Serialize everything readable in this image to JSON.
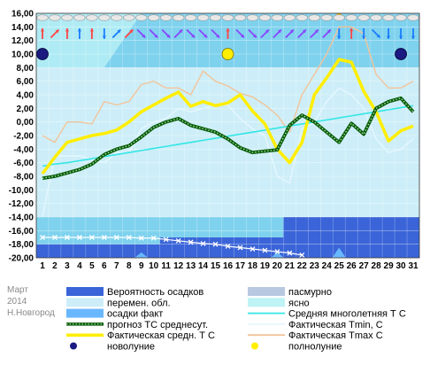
{
  "chart_data": {
    "type": "line",
    "month": "Март",
    "year": "2014",
    "city": "Н.Новгород",
    "x": [
      1,
      2,
      3,
      4,
      5,
      6,
      7,
      8,
      9,
      10,
      11,
      12,
      13,
      14,
      15,
      16,
      17,
      18,
      19,
      20,
      21,
      22,
      23,
      24,
      25,
      26,
      27,
      28,
      29,
      30,
      31
    ],
    "ylim": [
      -20,
      16
    ],
    "yticks": [
      "16,00",
      "14,00",
      "12,00",
      "10,00",
      "8,00",
      "6,00",
      "4,00",
      "2,00",
      "0,00",
      "-2,00",
      "-4,00",
      "-6,00",
      "-8,00",
      "-10,00",
      "-12,00",
      "-14,00",
      "-16,00",
      "-18,00",
      "-20,00"
    ],
    "grid": true,
    "legend_position": "bottom",
    "colors": {
      "sky_upper": "#7fd2ee",
      "sky_lower": "#cdeef8",
      "clear": "#bff3f5",
      "precip_prob": "#3a64d8",
      "precip_fact": "#69b7ff",
      "overcast": "#b8c8e0",
      "avg_longterm": "#33e6e6",
      "forecast_mean": "#0a6f0a",
      "actual_mean": "#ffee00",
      "tmin": "#e6f7ff",
      "tmax": "#f2c49a",
      "new_moon": "#1a1a80",
      "full_moon": "#ffee00"
    },
    "series": [
      {
        "name": "Фактическая средн. Т С",
        "values": [
          -7.6,
          -5.2,
          -3,
          -2.5,
          -2,
          -1.7,
          -1.2,
          0,
          1.5,
          2.5,
          3.5,
          4.4,
          2.3,
          3,
          2.4,
          2.8,
          4,
          1.6,
          -0.3,
          -4,
          -6,
          -3,
          4,
          6.5,
          9.2,
          8.8,
          4.5,
          1.5,
          -2.8,
          -1.3,
          -0.6
        ]
      },
      {
        "name": "прогноз ТС среднесут.",
        "values": [
          -8.3,
          -8,
          -7.5,
          -7,
          -6.2,
          -4.8,
          -4,
          -3.5,
          -2.2,
          -0.8,
          0,
          0.5,
          -0.5,
          -1,
          -1.5,
          -2.5,
          -3.8,
          -4.5,
          -4.3,
          -4.1,
          -0.5,
          1,
          0,
          -1.5,
          -3,
          -0.2,
          -1.8,
          2,
          3,
          3.5,
          1.5
        ]
      },
      {
        "name": "Средняя многолетняя Т С",
        "values": [
          -6.5,
          -6.2,
          -6,
          -5.7,
          -5.4,
          -5.1,
          -4.8,
          -4.5,
          -4.2,
          -3.9,
          -3.6,
          -3.3,
          -3,
          -2.7,
          -2.4,
          -2.1,
          -1.8,
          -1.5,
          -1.2,
          -0.9,
          -0.6,
          -0.3,
          0,
          0.3,
          0.6,
          0.9,
          1.2,
          1.5,
          1.8,
          2.1,
          2.4
        ]
      },
      {
        "name": "Фактическая Tmin, C",
        "values": [
          -14,
          -5,
          -5,
          -5,
          -5.5,
          -6,
          -4.5,
          -4.5,
          -1,
          0,
          0.5,
          2,
          1.5,
          2,
          2.5,
          2.5,
          0.5,
          -1,
          -2,
          -8,
          -9,
          -1,
          0,
          3,
          5,
          4,
          2,
          -2.5,
          -4.5,
          -4,
          -2.5
        ]
      },
      {
        "name": "Фактическая Tmax C",
        "values": [
          -2,
          -3,
          0,
          0,
          -0.3,
          3,
          2.5,
          3,
          5.5,
          6,
          5,
          5,
          4,
          7.5,
          6,
          5.3,
          4.2,
          3.7,
          2.5,
          1,
          -1.5,
          4,
          7,
          10,
          14,
          14,
          13,
          7,
          5,
          5,
          6
        ]
      },
      {
        "name": "Вероятность осадков",
        "values": [
          -18,
          -18,
          -18,
          -18,
          -18,
          -18,
          -18,
          -18,
          -18,
          -18,
          -17,
          -17,
          -17,
          -17,
          -17,
          -17,
          -17,
          -17,
          -17,
          -17,
          -14,
          -14,
          -14,
          -14,
          -14,
          -14,
          -14,
          -14,
          -14,
          -14,
          -14
        ]
      },
      {
        "name": "осадки факт",
        "values": [
          -20,
          -20,
          -20,
          -20,
          -20,
          -20,
          -20,
          -20,
          -19.2,
          -20,
          -20,
          -20,
          -20,
          -20,
          -20,
          -20,
          -20,
          -20,
          -20,
          -19.2,
          -20,
          -20,
          -20,
          -20,
          -18.5,
          -20,
          -20,
          -20,
          -20,
          -20,
          -20
        ]
      },
      {
        "name": "snow_cover",
        "values": [
          -17,
          -17,
          -17,
          -17,
          -17,
          -17,
          -17,
          -17,
          -17.1,
          -17.1,
          -17.3,
          -17.5,
          -17.7,
          -17.9,
          -18,
          -18.3,
          -18.5,
          -18.7,
          -18.9,
          -19.1,
          -19.3,
          -19.6,
          -19.9,
          -20,
          -20,
          -20,
          -20,
          -20,
          -20,
          -20,
          -20
        ]
      }
    ],
    "moon_phases": [
      {
        "day": 1,
        "phase": "новолуние",
        "y": 10
      },
      {
        "day": 16,
        "phase": "полнолуние",
        "y": 10
      },
      {
        "day": 30,
        "phase": "новолуние",
        "y": 10
      }
    ],
    "wind_arrows": [
      {
        "day": 1,
        "direction": "n",
        "color": "#ff4444"
      },
      {
        "day": 2,
        "direction": "ne",
        "color": "#ff4444"
      },
      {
        "day": 3,
        "direction": "n",
        "color": "#ff4444"
      },
      {
        "day": 4,
        "direction": "n",
        "color": "#1a7cff"
      },
      {
        "day": 5,
        "direction": "n",
        "color": "#ff4444"
      },
      {
        "day": 6,
        "direction": "s",
        "color": "#1a7cff"
      },
      {
        "day": 7,
        "direction": "ne",
        "color": "#1a7cff"
      },
      {
        "day": 8,
        "direction": "ne",
        "color": "#ff4444"
      },
      {
        "day": 9,
        "direction": "se",
        "color": "#8a44ff"
      },
      {
        "day": 10,
        "direction": "se",
        "color": "#8a44ff"
      },
      {
        "day": 11,
        "direction": "se",
        "color": "#8a44ff"
      },
      {
        "day": 12,
        "direction": "ne",
        "color": "#8a44ff"
      },
      {
        "day": 13,
        "direction": "se",
        "color": "#8a44ff"
      },
      {
        "day": 14,
        "direction": "se",
        "color": "#8a44ff"
      },
      {
        "day": 15,
        "direction": "se",
        "color": "#8a44ff"
      },
      {
        "day": 16,
        "direction": "n",
        "color": "#ff4444"
      },
      {
        "day": 17,
        "direction": "se",
        "color": "#8a44ff"
      },
      {
        "day": 18,
        "direction": "se",
        "color": "#8a44ff"
      },
      {
        "day": 19,
        "direction": "ne",
        "color": "#8a44ff"
      },
      {
        "day": 20,
        "direction": "ne",
        "color": "#8a44ff"
      },
      {
        "day": 21,
        "direction": "ne",
        "color": "#8a44ff"
      },
      {
        "day": 22,
        "direction": "ne",
        "color": "#8a44ff"
      },
      {
        "day": 23,
        "direction": "ne",
        "color": "#8a44ff"
      },
      {
        "day": 24,
        "direction": "ne",
        "color": "#8a44ff"
      },
      {
        "day": 25,
        "direction": "s",
        "color": "#1a7cff"
      },
      {
        "day": 26,
        "direction": "n",
        "color": "#ff4444"
      },
      {
        "day": 27,
        "direction": "s",
        "color": "#1a7cff"
      },
      {
        "day": 28,
        "direction": "se",
        "color": "#1a7cff"
      },
      {
        "day": 29,
        "direction": "s",
        "color": "#1a7cff"
      },
      {
        "day": 30,
        "direction": "s",
        "color": "#1a7cff"
      },
      {
        "day": 31,
        "direction": "s",
        "color": "#1a7cff"
      }
    ],
    "legend": [
      {
        "label": "Вероятность осадков",
        "key": "precip_prob",
        "kind": "rect"
      },
      {
        "label": "пасмурно",
        "key": "overcast",
        "kind": "rect"
      },
      {
        "label": "перемен. обл.",
        "key": "sky_lower",
        "kind": "rect"
      },
      {
        "label": "ясно",
        "key": "clear",
        "kind": "rect"
      },
      {
        "label": "осадки факт",
        "key": "precip_fact",
        "kind": "rect"
      },
      {
        "label": "Средняя многолетняя Т С",
        "key": "avg_longterm",
        "kind": "line"
      },
      {
        "label": "прогноз ТС среднесут.",
        "key": "forecast_mean",
        "kind": "dotted"
      },
      {
        "label": "Фактическая Tmin, C",
        "key": "tmin",
        "kind": "line"
      },
      {
        "label": "Фактическая средн. Т С",
        "key": "actual_mean",
        "kind": "thick"
      },
      {
        "label": "Фактическая Tmax C",
        "key": "tmax",
        "kind": "line"
      },
      {
        "label": "новолуние",
        "key": "new_moon",
        "kind": "dot"
      },
      {
        "label": "полнолуние",
        "key": "full_moon",
        "kind": "dot"
      }
    ]
  }
}
